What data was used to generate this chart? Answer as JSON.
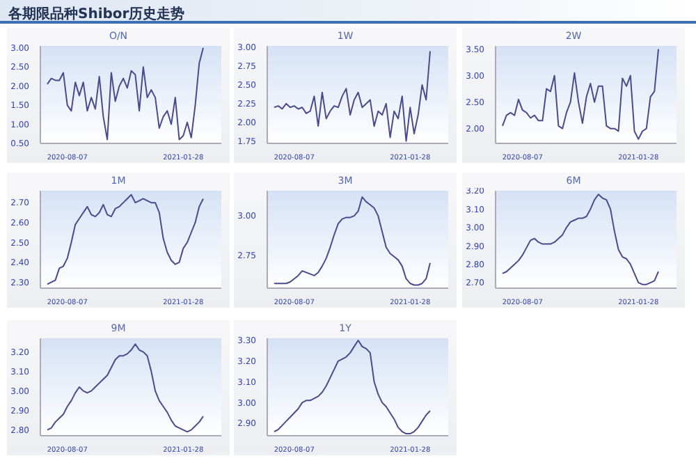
{
  "chart_data": [
    {
      "type": "other",
      "title": "各期限品种Shibor历史走势"
    },
    {
      "type": "line",
      "title": "O/N",
      "categories": [
        null,
        null,
        null,
        null,
        null,
        "2020-08-07",
        null,
        null,
        null,
        null,
        null,
        null,
        null,
        null,
        null,
        null,
        null,
        null,
        null,
        null,
        null,
        null,
        null,
        null,
        null,
        null,
        null,
        null,
        null,
        null,
        null,
        null,
        null,
        null,
        "2021-01-28",
        null,
        null,
        null,
        null,
        null
      ],
      "ylim": [
        0.5,
        3.05
      ],
      "yticks": [
        {
          "value": 0.5,
          "label": "0.50"
        },
        {
          "value": 1,
          "label": "1.00"
        },
        {
          "value": 1.5,
          "label": "1.50"
        },
        {
          "value": 2,
          "label": "2.00"
        },
        {
          "value": 2.5,
          "label": "2.50"
        },
        {
          "value": 3,
          "label": "3.00"
        }
      ],
      "marker": "none",
      "series": [
        {
          "color": "#4a4a8c",
          "values": [
            2.05,
            2.2,
            2.15,
            2.15,
            2.35,
            1.5,
            1.35,
            2.1,
            1.75,
            2.1,
            1.35,
            1.7,
            1.4,
            2.25,
            1.2,
            0.6,
            2.35,
            1.6,
            2.0,
            2.2,
            1.95,
            2.4,
            2.3,
            1.35,
            2.5,
            1.7,
            1.9,
            1.7,
            0.9,
            1.2,
            1.35,
            1.0,
            1.7,
            0.6,
            0.7,
            1.05,
            0.65,
            1.5,
            2.6,
            3.0
          ]
        }
      ]
    },
    {
      "type": "line",
      "title": "1W",
      "categories": [
        null,
        null,
        null,
        null,
        null,
        "2020-08-07",
        null,
        null,
        null,
        null,
        null,
        null,
        null,
        null,
        null,
        null,
        null,
        null,
        null,
        null,
        null,
        null,
        null,
        null,
        null,
        null,
        null,
        null,
        null,
        null,
        null,
        null,
        null,
        null,
        "2021-01-28",
        null,
        null,
        null,
        null,
        null
      ],
      "ylim": [
        1.72,
        3.02
      ],
      "yticks": [
        1.75,
        {
          "value": 2,
          "label": "2.00"
        },
        2.25,
        {
          "value": 2.5,
          "label": "2.50"
        },
        2.75,
        {
          "value": 3,
          "label": "3.00"
        }
      ],
      "marker": "none",
      "series": [
        {
          "color": "#4a4a8c",
          "values": [
            2.2,
            2.22,
            2.18,
            2.25,
            2.2,
            2.22,
            2.18,
            2.2,
            2.12,
            2.15,
            2.35,
            1.95,
            2.4,
            2.05,
            2.15,
            2.22,
            2.2,
            2.35,
            2.45,
            2.1,
            2.3,
            2.4,
            2.2,
            2.25,
            2.3,
            1.95,
            2.15,
            2.1,
            2.25,
            1.8,
            2.15,
            2.05,
            2.35,
            1.75,
            2.2,
            1.85,
            2.1,
            2.5,
            2.3,
            2.95
          ]
        }
      ]
    },
    {
      "type": "line",
      "title": "2W",
      "categories": [
        null,
        null,
        null,
        null,
        null,
        "2020-08-07",
        null,
        null,
        null,
        null,
        null,
        null,
        null,
        null,
        null,
        null,
        null,
        null,
        null,
        null,
        null,
        null,
        null,
        null,
        null,
        null,
        null,
        null,
        null,
        null,
        null,
        null,
        null,
        null,
        "2021-01-28",
        null,
        null,
        null,
        null,
        null
      ],
      "ylim": [
        1.72,
        3.56
      ],
      "yticks": [
        {
          "value": 2,
          "label": "2.00"
        },
        {
          "value": 2.5,
          "label": "2.50"
        },
        {
          "value": 3,
          "label": "3.00"
        },
        {
          "value": 3.5,
          "label": "3.50"
        }
      ],
      "marker": "none",
      "series": [
        {
          "color": "#4a4a8c",
          "values": [
            2.05,
            2.25,
            2.3,
            2.25,
            2.55,
            2.35,
            2.3,
            2.2,
            2.25,
            2.15,
            2.15,
            2.75,
            2.7,
            3.0,
            2.05,
            2.0,
            2.3,
            2.5,
            3.05,
            2.5,
            2.1,
            2.6,
            2.85,
            2.5,
            2.8,
            2.8,
            2.05,
            2.0,
            2.0,
            1.95,
            2.95,
            2.8,
            3.0,
            1.95,
            1.8,
            1.95,
            2.0,
            2.6,
            2.7,
            3.5
          ]
        }
      ]
    },
    {
      "type": "line",
      "title": "1M",
      "categories": [
        null,
        null,
        null,
        null,
        null,
        "2020-08-07",
        null,
        null,
        null,
        null,
        null,
        null,
        null,
        null,
        null,
        null,
        null,
        null,
        null,
        null,
        null,
        null,
        null,
        null,
        null,
        null,
        null,
        null,
        null,
        null,
        null,
        null,
        null,
        null,
        "2021-01-28",
        null,
        null,
        null,
        null,
        null
      ],
      "ylim": [
        2.27,
        2.76
      ],
      "yticks": [
        {
          "value": 2.3,
          "label": "2.30"
        },
        {
          "value": 2.4,
          "label": "2.40"
        },
        {
          "value": 2.5,
          "label": "2.50"
        },
        {
          "value": 2.6,
          "label": "2.60"
        },
        {
          "value": 2.7,
          "label": "2.70"
        }
      ],
      "marker": "none",
      "series": [
        {
          "color": "#4a4a8c",
          "values": [
            2.29,
            2.3,
            2.31,
            2.37,
            2.38,
            2.42,
            2.5,
            2.59,
            2.62,
            2.65,
            2.68,
            2.64,
            2.63,
            2.65,
            2.69,
            2.64,
            2.63,
            2.67,
            2.68,
            2.7,
            2.72,
            2.74,
            2.7,
            2.71,
            2.72,
            2.71,
            2.7,
            2.7,
            2.65,
            2.52,
            2.45,
            2.41,
            2.39,
            2.4,
            2.47,
            2.5,
            2.55,
            2.6,
            2.68,
            2.72
          ]
        }
      ]
    },
    {
      "type": "line",
      "title": "3M",
      "categories": [
        null,
        null,
        null,
        null,
        null,
        "2020-08-07",
        null,
        null,
        null,
        null,
        null,
        null,
        null,
        null,
        null,
        null,
        null,
        null,
        null,
        null,
        null,
        null,
        null,
        null,
        null,
        null,
        null,
        null,
        null,
        null,
        null,
        null,
        null,
        null,
        "2021-01-28",
        null,
        null,
        null,
        null,
        null
      ],
      "ylim": [
        2.54,
        3.16
      ],
      "yticks": [
        2.75,
        {
          "value": 3,
          "label": "3.00"
        }
      ],
      "marker": "none",
      "series": [
        {
          "color": "#4a4a8c",
          "values": [
            2.57,
            2.57,
            2.57,
            2.57,
            2.58,
            2.6,
            2.62,
            2.65,
            2.64,
            2.63,
            2.62,
            2.64,
            2.68,
            2.73,
            2.8,
            2.88,
            2.95,
            2.98,
            2.99,
            2.99,
            3.0,
            3.03,
            3.12,
            3.09,
            3.07,
            3.05,
            3.0,
            2.9,
            2.8,
            2.76,
            2.74,
            2.72,
            2.68,
            2.6,
            2.57,
            2.56,
            2.56,
            2.57,
            2.6,
            2.7
          ]
        }
      ]
    },
    {
      "type": "line",
      "title": "6M",
      "categories": [
        null,
        null,
        null,
        null,
        null,
        "2020-08-07",
        null,
        null,
        null,
        null,
        null,
        null,
        null,
        null,
        null,
        null,
        null,
        null,
        null,
        null,
        null,
        null,
        null,
        null,
        null,
        null,
        null,
        null,
        null,
        null,
        null,
        null,
        null,
        null,
        "2021-01-28",
        null,
        null,
        null,
        null,
        null
      ],
      "ylim": [
        2.67,
        3.2
      ],
      "yticks": [
        {
          "value": 2.7,
          "label": "2.70"
        },
        {
          "value": 2.8,
          "label": "2.80"
        },
        {
          "value": 2.9,
          "label": "2.90"
        },
        {
          "value": 3,
          "label": "3.00"
        },
        {
          "value": 3.1,
          "label": "3.10"
        },
        {
          "value": 3.2,
          "label": "3.20"
        }
      ],
      "marker": "none",
      "series": [
        {
          "color": "#4a4a8c",
          "values": [
            2.75,
            2.76,
            2.78,
            2.8,
            2.82,
            2.85,
            2.89,
            2.93,
            2.94,
            2.92,
            2.91,
            2.91,
            2.91,
            2.92,
            2.94,
            2.96,
            3.0,
            3.03,
            3.04,
            3.05,
            3.05,
            3.06,
            3.1,
            3.15,
            3.18,
            3.16,
            3.15,
            3.1,
            2.98,
            2.88,
            2.84,
            2.83,
            2.8,
            2.75,
            2.7,
            2.69,
            2.69,
            2.7,
            2.71,
            2.76
          ]
        }
      ]
    },
    {
      "type": "line",
      "title": "9M",
      "categories": [
        null,
        null,
        null,
        null,
        null,
        "2020-08-07",
        null,
        null,
        null,
        null,
        null,
        null,
        null,
        null,
        null,
        null,
        null,
        null,
        null,
        null,
        null,
        null,
        null,
        null,
        null,
        null,
        null,
        null,
        null,
        null,
        null,
        null,
        null,
        null,
        "2021-01-28",
        null,
        null,
        null,
        null,
        null
      ],
      "ylim": [
        2.77,
        3.27
      ],
      "yticks": [
        {
          "value": 2.8,
          "label": "2.80"
        },
        {
          "value": 2.9,
          "label": "2.90"
        },
        {
          "value": 3,
          "label": "3.00"
        },
        {
          "value": 3.1,
          "label": "3.10"
        },
        {
          "value": 3.2,
          "label": "3.20"
        }
      ],
      "marker": "none",
      "series": [
        {
          "color": "#4a4a8c",
          "values": [
            2.8,
            2.81,
            2.84,
            2.86,
            2.88,
            2.92,
            2.95,
            2.99,
            3.02,
            3.0,
            2.99,
            3.0,
            3.02,
            3.04,
            3.06,
            3.08,
            3.12,
            3.16,
            3.18,
            3.18,
            3.19,
            3.21,
            3.24,
            3.21,
            3.2,
            3.18,
            3.1,
            3.0,
            2.95,
            2.92,
            2.89,
            2.85,
            2.82,
            2.81,
            2.8,
            2.79,
            2.8,
            2.82,
            2.84,
            2.87
          ]
        }
      ]
    },
    {
      "type": "line",
      "title": "1Y",
      "categories": [
        null,
        null,
        null,
        null,
        null,
        "2020-08-07",
        null,
        null,
        null,
        null,
        null,
        null,
        null,
        null,
        null,
        null,
        null,
        null,
        null,
        null,
        null,
        null,
        null,
        null,
        null,
        null,
        null,
        null,
        null,
        null,
        null,
        null,
        null,
        null,
        "2021-01-28",
        null,
        null,
        null,
        null,
        null
      ],
      "ylim": [
        2.84,
        3.31
      ],
      "yticks": [
        {
          "value": 2.9,
          "label": "2.90"
        },
        {
          "value": 3,
          "label": "3.00"
        },
        {
          "value": 3.1,
          "label": "3.10"
        },
        {
          "value": 3.2,
          "label": "3.20"
        },
        {
          "value": 3.3,
          "label": "3.30"
        }
      ],
      "marker": "none",
      "series": [
        {
          "color": "#4a4a8c",
          "values": [
            2.86,
            2.87,
            2.89,
            2.91,
            2.93,
            2.95,
            2.97,
            3.0,
            3.01,
            3.01,
            3.02,
            3.03,
            3.05,
            3.08,
            3.12,
            3.16,
            3.2,
            3.21,
            3.22,
            3.24,
            3.27,
            3.3,
            3.27,
            3.26,
            3.24,
            3.1,
            3.04,
            3.0,
            2.98,
            2.95,
            2.92,
            2.88,
            2.86,
            2.85,
            2.85,
            2.86,
            2.88,
            2.91,
            2.94,
            2.96
          ]
        }
      ]
    }
  ]
}
